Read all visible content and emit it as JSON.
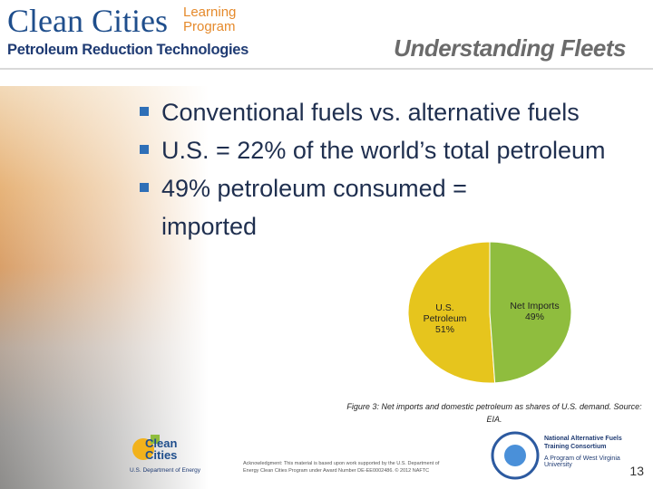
{
  "header": {
    "brand": "Clean Cities",
    "program": "Learning Program",
    "subtitle": "Petroleum Reduction Technologies",
    "section": "Understanding Fleets"
  },
  "bullets": [
    "Conventional fuels vs. alternative fuels",
    "U.S. = 22% of the world’s total petroleum",
    "49% petroleum consumed = imported"
  ],
  "chart_data": {
    "type": "pie",
    "categories": [
      "U.S. Petroleum",
      "Net Imports"
    ],
    "values": [
      51,
      49
    ],
    "value_labels": [
      "51%",
      "49%"
    ],
    "colors": [
      "#e6c51d",
      "#8fbd3e"
    ],
    "caption": "Figure 3: Net imports and domestic petroleum as shares of U.S. demand. Source: EIA."
  },
  "footer": {
    "acknowledgment": "Acknowledgment: This material is based upon work supported by the U.S. Department of Energy Clean Cities Program under Award Number DE-EE0002486. © 2012 NAFTC",
    "logo": "Clean Cities",
    "department": "U.S. Department of Energy",
    "consortium": "National Alternative Fuels Training Consortium",
    "university": "A Program of West Virginia University",
    "page": "13"
  }
}
